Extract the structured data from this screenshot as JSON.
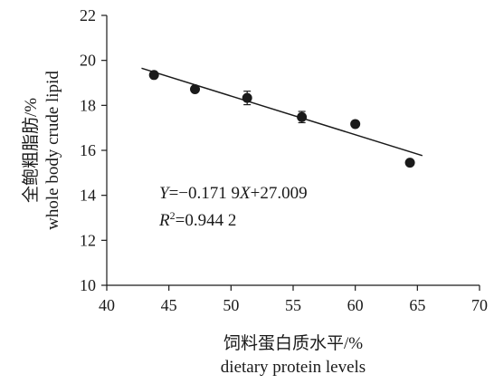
{
  "chart_data": {
    "type": "scatter",
    "title": "",
    "xlabel": "饲料蛋白质水平/%",
    "xlabel_en": "dietary protein levels",
    "ylabel": "全鲍粗脂肪/%",
    "ylabel_en": "whole body crude lipid",
    "xlim": [
      40,
      70
    ],
    "ylim": [
      10,
      22
    ],
    "xticks": [
      "40",
      "45",
      "50",
      "55",
      "60",
      "65",
      "70"
    ],
    "yticks": [
      "10",
      "12",
      "14",
      "16",
      "18",
      "20",
      "22"
    ],
    "grid": false,
    "legend": "none",
    "points": [
      {
        "x": 43.8,
        "y": 19.35,
        "err": 0.1
      },
      {
        "x": 47.1,
        "y": 18.72,
        "err": 0.1
      },
      {
        "x": 51.3,
        "y": 18.33,
        "err": 0.3
      },
      {
        "x": 55.7,
        "y": 17.48,
        "err": 0.25
      },
      {
        "x": 60.0,
        "y": 17.17,
        "err": 0.1
      },
      {
        "x": 64.4,
        "y": 15.45,
        "err": 0.1
      }
    ],
    "trendline": {
      "slope": -0.1719,
      "intercept": 27.009,
      "x_range": [
        42.8,
        65.4
      ]
    },
    "annotations": {
      "equation": {
        "y_sym": "Y",
        "mid": "=−0.171 9",
        "x_sym": "X",
        "tail": "+27.009"
      },
      "r2": {
        "r": "R",
        "sup": "2",
        "val": "=0.944 2"
      }
    },
    "colors": {
      "marker": "#1a1a1a",
      "line": "#1a1a1a",
      "axis": "#1a1a1a"
    }
  }
}
